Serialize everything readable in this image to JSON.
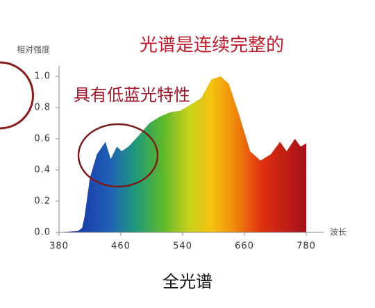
{
  "chart_data": {
    "type": "area",
    "title": "光谱是连续完整的",
    "annotation": "具有低蓝光特性",
    "caption": "全光谱",
    "y_label": "相对强度",
    "x_label": "波长",
    "x": [
      380,
      405,
      410,
      413,
      420,
      429,
      440,
      447,
      455,
      461,
      470,
      483,
      497,
      510,
      524,
      537,
      556,
      576,
      596,
      614,
      630,
      650,
      671,
      691,
      711,
      729,
      742,
      758,
      769,
      780
    ],
    "values": [
      0,
      0.01,
      0.03,
      0.1,
      0.35,
      0.5,
      0.58,
      0.47,
      0.55,
      0.52,
      0.55,
      0.62,
      0.7,
      0.74,
      0.77,
      0.78,
      0.82,
      0.86,
      0.98,
      1.0,
      0.95,
      0.75,
      0.52,
      0.46,
      0.5,
      0.58,
      0.52,
      0.6,
      0.55,
      0.57
    ],
    "xlim": [
      380,
      780
    ],
    "xticks": [
      380,
      460,
      540,
      660,
      780
    ],
    "ylim": [
      0,
      1.0
    ],
    "yticks": [
      {
        "value": 0,
        "label": "0.0"
      },
      0.2,
      0.4,
      0.6,
      0.8,
      {
        "value": 1,
        "label": "1.0"
      }
    ]
  }
}
